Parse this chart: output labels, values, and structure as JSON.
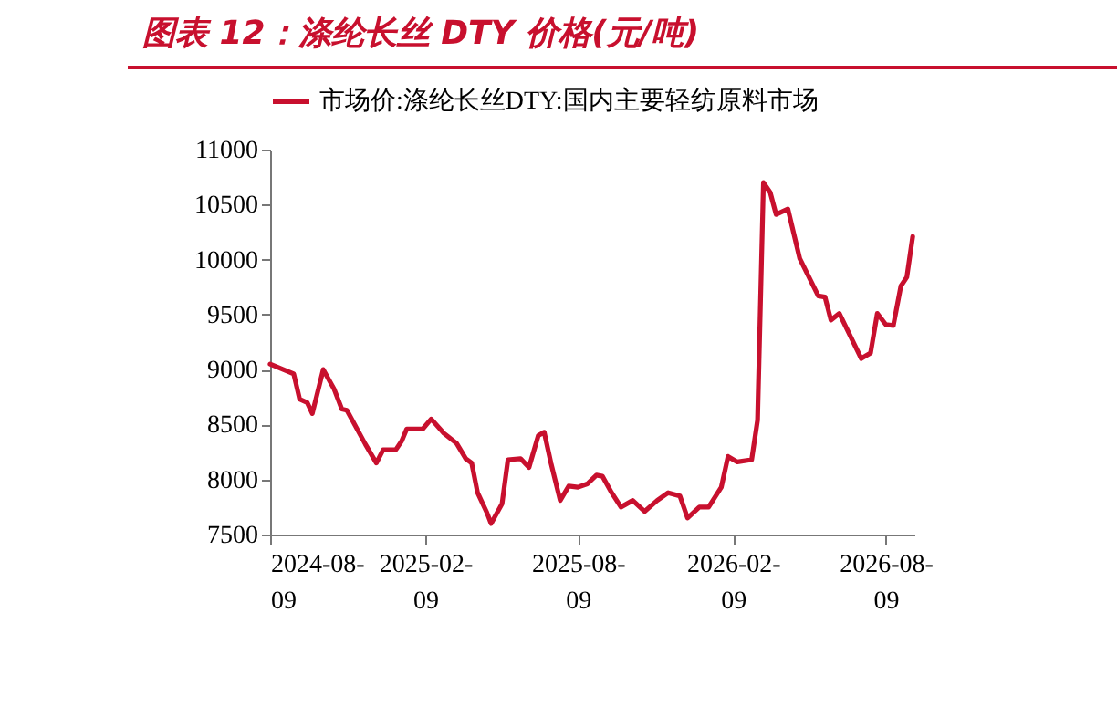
{
  "chart_data": {
    "type": "line",
    "title": "图表 12：涤纶长丝 DTY 价格(元/吨)",
    "x": [
      "2024-08-09",
      "2024-09-06",
      "2024-09-13",
      "2024-09-22",
      "2024-09-28",
      "2024-10-11",
      "2024-10-24",
      "2024-11-02",
      "2024-11-08",
      "2024-11-30",
      "2024-12-13",
      "2024-12-21",
      "2025-01-05",
      "2025-01-12",
      "2025-01-18",
      "2025-02-06",
      "2025-02-16",
      "2025-03-03",
      "2025-03-18",
      "2025-03-29",
      "2025-04-05",
      "2025-04-12",
      "2025-04-23",
      "2025-04-28",
      "2025-05-11",
      "2025-05-18",
      "2025-06-02",
      "2025-06-12",
      "2025-06-23",
      "2025-06-30",
      "2025-07-08",
      "2025-07-19",
      "2025-07-29",
      "2025-08-09",
      "2025-08-20",
      "2025-08-31",
      "2025-09-07",
      "2025-09-18",
      "2025-09-29",
      "2025-10-13",
      "2025-10-27",
      "2025-11-11",
      "2025-11-24",
      "2025-12-08",
      "2025-12-17",
      "2025-12-31",
      "2026-01-11",
      "2026-01-26",
      "2026-02-03",
      "2026-02-14",
      "2026-03-03",
      "2026-03-10",
      "2026-03-17",
      "2026-03-25",
      "2026-04-01",
      "2026-04-15",
      "2026-04-29",
      "2026-05-21",
      "2026-05-29",
      "2026-06-05",
      "2026-06-15",
      "2026-07-11",
      "2026-07-22",
      "2026-07-30",
      "2026-08-09",
      "2026-08-18",
      "2026-08-27",
      "2026-09-03",
      "2026-09-10"
    ],
    "series": [
      {
        "name": "市场价:涤纶长丝DTY:国内主要轻纺原料市场",
        "color": "#c8102e",
        "values": [
          9050,
          8960,
          8730,
          8700,
          8600,
          9000,
          8820,
          8640,
          8630,
          8320,
          8150,
          8270,
          8270,
          8350,
          8460,
          8460,
          8550,
          8420,
          8330,
          8190,
          8150,
          7880,
          7700,
          7600,
          7780,
          8180,
          8190,
          8110,
          8400,
          8430,
          8150,
          7810,
          7940,
          7930,
          7960,
          8040,
          8030,
          7880,
          7750,
          7810,
          7710,
          7810,
          7880,
          7850,
          7650,
          7750,
          7750,
          7930,
          8210,
          8160,
          8180,
          8540,
          10700,
          10610,
          10410,
          10460,
          10010,
          9670,
          9660,
          9450,
          9510,
          9100,
          9150,
          9510,
          9410,
          9400,
          9760,
          9840,
          10210
        ]
      }
    ],
    "xlim": [
      "2024-08-09",
      "2026-09-12"
    ],
    "xticks": [
      "2024-08-09",
      "2025-02-09",
      "2025-08-09",
      "2026-02-09",
      "2026-08-09"
    ],
    "ylim": [
      7500,
      11000
    ],
    "yticks": [
      7500,
      8000,
      8500,
      9000,
      9500,
      10000,
      10500,
      11000
    ],
    "legend": "top",
    "grid": false,
    "marker": "none",
    "line_style": "solid"
  }
}
